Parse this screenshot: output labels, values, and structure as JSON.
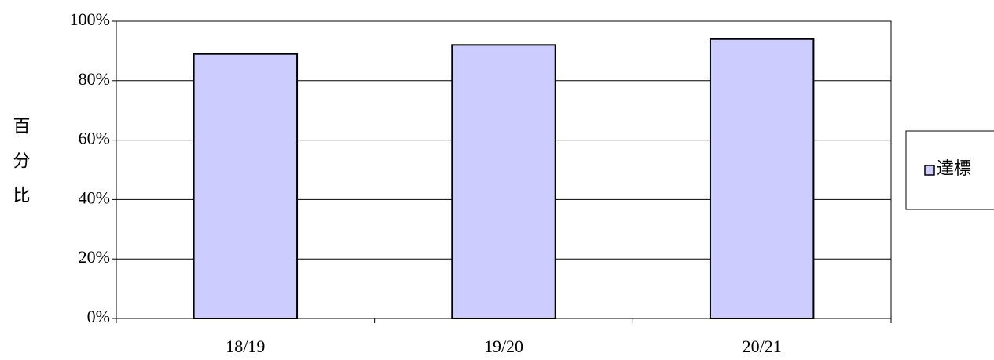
{
  "chart_data": {
    "type": "bar",
    "y_label": "百分比",
    "categories": [
      "18/19",
      "19/20",
      "20/21"
    ],
    "series": [
      {
        "name": "達標",
        "color": "#ccccff",
        "values": [
          89,
          92,
          94
        ]
      }
    ],
    "ylim": [
      0,
      100
    ],
    "yticks": [
      {
        "value": 0,
        "label": "0%"
      },
      {
        "value": 20,
        "label": "20%"
      },
      {
        "value": 40,
        "label": "40%"
      },
      {
        "value": 60,
        "label": "60%"
      },
      {
        "value": 80,
        "label": "80%"
      },
      {
        "value": 100,
        "label": "100%"
      }
    ],
    "grid": true,
    "legend": "right"
  }
}
